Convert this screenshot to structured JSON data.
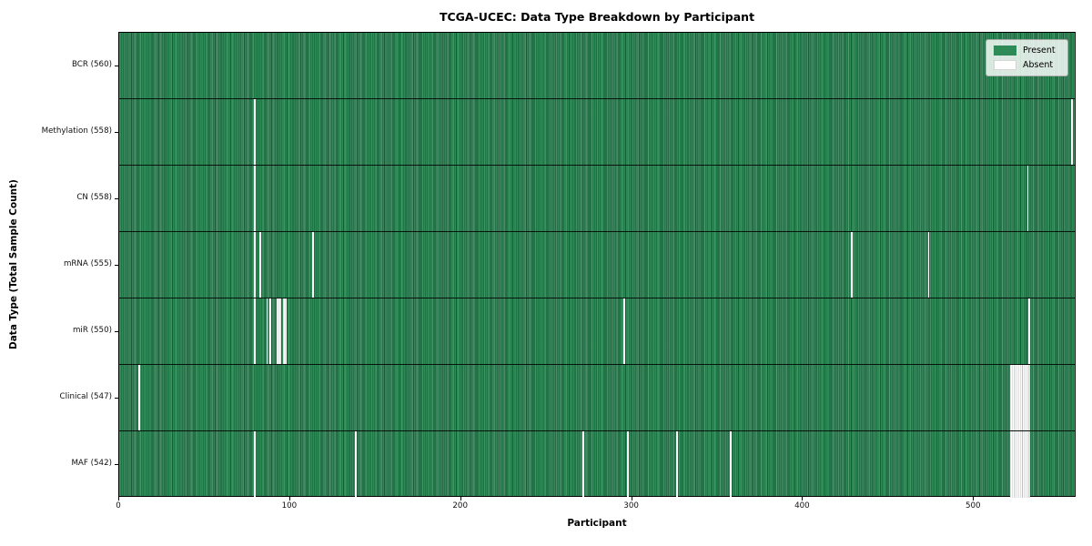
{
  "title": "TCGA-UCEC: Data Type Breakdown by Participant",
  "legend": {
    "items": [
      {
        "label": "Present",
        "color": "#2e8b57"
      },
      {
        "label": "Absent",
        "color": "#ffffff"
      }
    ]
  },
  "colors": {
    "present": "#2e8b57",
    "present_mesh_line": "#1e5f3d",
    "absent": "#ffffff",
    "plot_border": "#000000"
  },
  "chart_data": {
    "type": "heatmap",
    "title": "TCGA-UCEC: Data Type Breakdown by Participant",
    "xlabel": "Participant",
    "ylabel": "Data Type (Total Sample Count)",
    "x_ticks": [
      0,
      100,
      200,
      300,
      400,
      500
    ],
    "x_range": [
      0,
      560
    ],
    "n_participants": 560,
    "legend_position": "upper right",
    "legend_entries": [
      "Present",
      "Absent"
    ],
    "rows": [
      {
        "label": "BCR (560)",
        "data_type": "BCR",
        "present_count": 560,
        "absent_participants": []
      },
      {
        "label": "Methylation (558)",
        "data_type": "Methylation",
        "present_count": 558,
        "absent_participants": [
          79,
          557
        ]
      },
      {
        "label": "CN (558)",
        "data_type": "CN",
        "present_count": 558,
        "absent_participants": [
          79,
          531
        ]
      },
      {
        "label": "mRNA (555)",
        "data_type": "mRNA",
        "present_count": 555,
        "absent_participants": [
          79,
          82,
          113,
          428,
          473
        ]
      },
      {
        "label": "miR (550)",
        "data_type": "miR",
        "present_count": 550,
        "absent_participants": [
          79,
          86,
          88,
          92,
          93,
          94,
          96,
          97,
          295,
          532
        ]
      },
      {
        "label": "Clinical (547)",
        "data_type": "Clinical",
        "present_count": 547,
        "absent_participants": [
          11,
          521,
          522,
          523,
          524,
          525,
          526,
          527,
          528,
          529,
          530,
          531,
          532
        ]
      },
      {
        "label": "MAF (542)",
        "data_type": "MAF",
        "present_count": 542,
        "absent_participants": [
          79,
          138,
          271,
          297,
          326,
          357,
          521,
          522,
          523,
          524,
          525,
          526,
          527,
          528,
          529,
          530,
          531,
          532
        ]
      }
    ]
  }
}
